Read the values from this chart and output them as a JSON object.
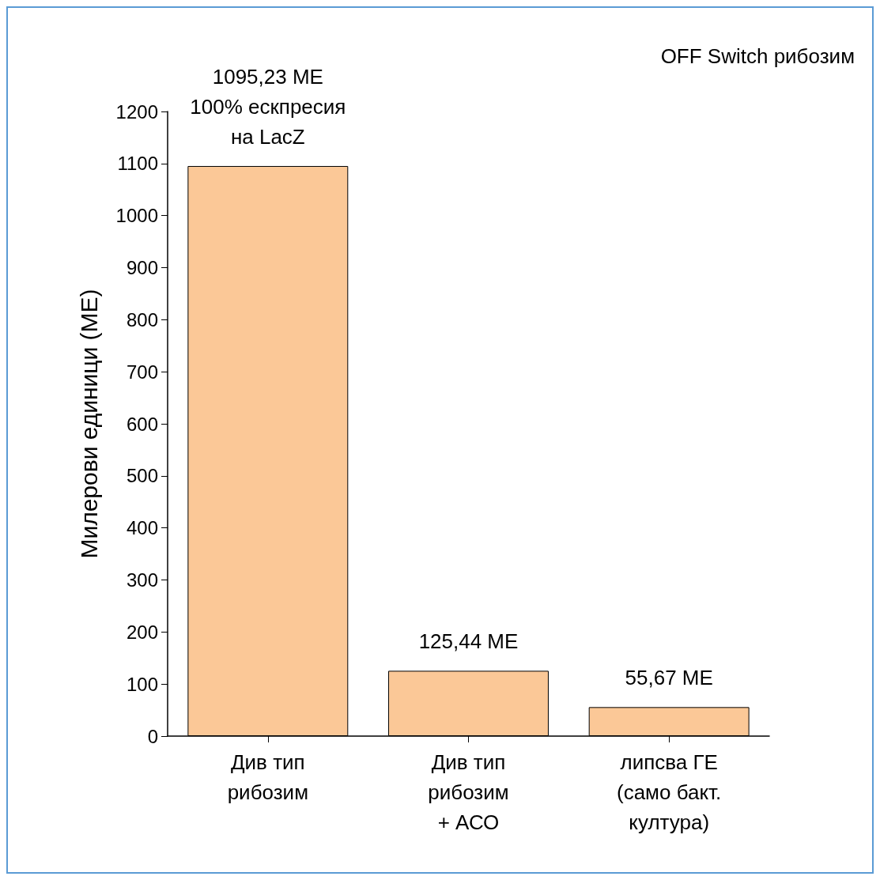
{
  "chart_data": {
    "type": "bar",
    "ylabel": "Милерови единици (МЕ)",
    "categories": [
      "Див тип\nрибозим",
      "Див тип\nрибозим\n+ АСО",
      "липсва ГЕ\n(само бакт.\nкултура)"
    ],
    "values": [
      1095.23,
      125.44,
      55.67
    ],
    "value_labels": [
      "1095,23 МЕ\n100% ескпресия\nна LacZ",
      "125,44 МЕ",
      "55,67 МЕ"
    ],
    "color": "#fbc897",
    "ylim": [
      0,
      1200
    ],
    "yticks": [
      0,
      100,
      200,
      300,
      400,
      500,
      600,
      700,
      800,
      900,
      1000,
      1100,
      1200
    ],
    "grid": false,
    "annotations": [
      "OFF Switch рибозим"
    ]
  }
}
